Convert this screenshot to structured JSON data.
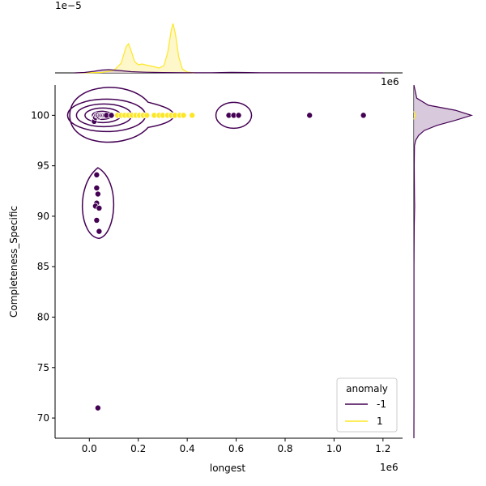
{
  "chart_data": {
    "type": "scatter",
    "subtype": "jointplot-kde",
    "xlabel": "longest",
    "ylabel": "Completeness_Specific",
    "x_offset_text": "1e6",
    "marg_x_offset_text": "1e−5",
    "marg_y_offset_text": "1e6",
    "xlim": [
      -140000,
      1280000
    ],
    "ylim": [
      68,
      103
    ],
    "x_ticks": [
      0.0,
      0.2,
      0.4,
      0.6,
      0.8,
      1.0,
      1.2
    ],
    "x_tick_labels": [
      "0.0",
      "0.2",
      "0.4",
      "0.6",
      "0.8",
      "1.0",
      "1.2"
    ],
    "y_ticks": [
      70,
      75,
      80,
      85,
      90,
      95,
      100
    ],
    "y_tick_labels": [
      "70",
      "75",
      "80",
      "85",
      "90",
      "95",
      "100"
    ],
    "grid": false,
    "legend": {
      "title": "anomaly",
      "placement": "bottom-right",
      "entries": [
        {
          "label": "-1",
          "color": "#440154"
        },
        {
          "label": "1",
          "color": "#fde725"
        }
      ]
    },
    "colors": {
      "anomaly": "#440154",
      "normal": "#fde725",
      "normal_fill": "#fef3b2",
      "anomaly_fill": "#d2bfd6"
    },
    "series": [
      {
        "name": "-1",
        "color": "#440154",
        "points": [
          [
            20000,
            99.4
          ],
          [
            25000,
            99.8
          ],
          [
            30000,
            100
          ],
          [
            35000,
            100
          ],
          [
            40000,
            99.9
          ],
          [
            45000,
            100
          ],
          [
            50000,
            100
          ],
          [
            55000,
            100
          ],
          [
            60000,
            100
          ],
          [
            65000,
            100
          ],
          [
            70000,
            100
          ],
          [
            90000,
            100
          ],
          [
            570000,
            100
          ],
          [
            590000,
            100
          ],
          [
            610000,
            100
          ],
          [
            900000,
            100
          ],
          [
            1120000,
            100
          ],
          [
            30000,
            94.1
          ],
          [
            30000,
            92.8
          ],
          [
            35000,
            92.2
          ],
          [
            30000,
            91.3
          ],
          [
            25000,
            91.0
          ],
          [
            40000,
            90.8
          ],
          [
            30000,
            89.6
          ],
          [
            40000,
            88.5
          ],
          [
            35000,
            71.0
          ]
        ]
      },
      {
        "name": "1",
        "color": "#fde725",
        "points": [
          [
            115000,
            100
          ],
          [
            130000,
            100
          ],
          [
            145000,
            100
          ],
          [
            160000,
            100
          ],
          [
            175000,
            100
          ],
          [
            190000,
            100
          ],
          [
            205000,
            100
          ],
          [
            220000,
            100
          ],
          [
            235000,
            100
          ],
          [
            265000,
            100
          ],
          [
            285000,
            100
          ],
          [
            300000,
            100
          ],
          [
            320000,
            100
          ],
          [
            335000,
            100
          ],
          [
            350000,
            100
          ],
          [
            370000,
            100
          ],
          [
            385000,
            100
          ],
          [
            420000,
            100
          ]
        ]
      }
    ],
    "marginal_x": {
      "ylim": [
        0,
        7.5
      ],
      "series": [
        {
          "name": "1",
          "color": "#fde725",
          "curve": [
            [
              -50000,
              0
            ],
            [
              50000,
              0.05
            ],
            [
              100000,
              0.3
            ],
            [
              130000,
              1.2
            ],
            [
              150000,
              3.2
            ],
            [
              160000,
              3.6
            ],
            [
              170000,
              2.8
            ],
            [
              185000,
              1.4
            ],
            [
              200000,
              1.0
            ],
            [
              215000,
              1.1
            ],
            [
              235000,
              0.95
            ],
            [
              260000,
              0.8
            ],
            [
              285000,
              0.6
            ],
            [
              305000,
              0.9
            ],
            [
              320000,
              2.5
            ],
            [
              335000,
              5.3
            ],
            [
              342000,
              6.1
            ],
            [
              352000,
              4.8
            ],
            [
              365000,
              2.0
            ],
            [
              380000,
              0.5
            ],
            [
              400000,
              0.1
            ],
            [
              430000,
              0
            ]
          ]
        },
        {
          "name": "-1",
          "color": "#440154",
          "curve": [
            [
              -60000,
              0
            ],
            [
              -20000,
              0.05
            ],
            [
              20000,
              0.2
            ],
            [
              50000,
              0.35
            ],
            [
              80000,
              0.4
            ],
            [
              120000,
              0.3
            ],
            [
              170000,
              0.15
            ],
            [
              230000,
              0.08
            ],
            [
              300000,
              0.04
            ],
            [
              400000,
              0.02
            ],
            [
              500000,
              0.02
            ],
            [
              580000,
              0.06
            ],
            [
              620000,
              0.05
            ],
            [
              700000,
              0.01
            ],
            [
              900000,
              0.01
            ],
            [
              1200000,
              0
            ]
          ]
        }
      ]
    },
    "marginal_y": {
      "series": [
        {
          "name": "-1",
          "color": "#440154",
          "curve": [
            [
              103,
              0.0
            ],
            [
              101.7,
              0.05
            ],
            [
              101.0,
              0.25
            ],
            [
              100.5,
              0.72
            ],
            [
              100.0,
              1.0
            ],
            [
              99.5,
              0.72
            ],
            [
              99.0,
              0.4
            ],
            [
              98.5,
              0.18
            ],
            [
              98.0,
              0.08
            ],
            [
              97.5,
              0.03
            ],
            [
              97.0,
              0.01
            ],
            [
              95,
              0.005
            ],
            [
              92,
              0.01
            ],
            [
              91,
              0.012
            ],
            [
              89,
              0.006
            ],
            [
              85,
              0.002
            ],
            [
              80,
              0.001
            ],
            [
              72,
              0.002
            ],
            [
              68,
              0
            ]
          ]
        },
        {
          "name": "1",
          "color": "#fde725",
          "curve": [
            [
              100.4,
              0
            ],
            [
              100.05,
              0.02
            ],
            [
              100,
              0.03
            ],
            [
              99.95,
              0.02
            ],
            [
              99.6,
              0
            ]
          ]
        }
      ]
    },
    "contours_note": "KDE density contours per anomaly class"
  }
}
